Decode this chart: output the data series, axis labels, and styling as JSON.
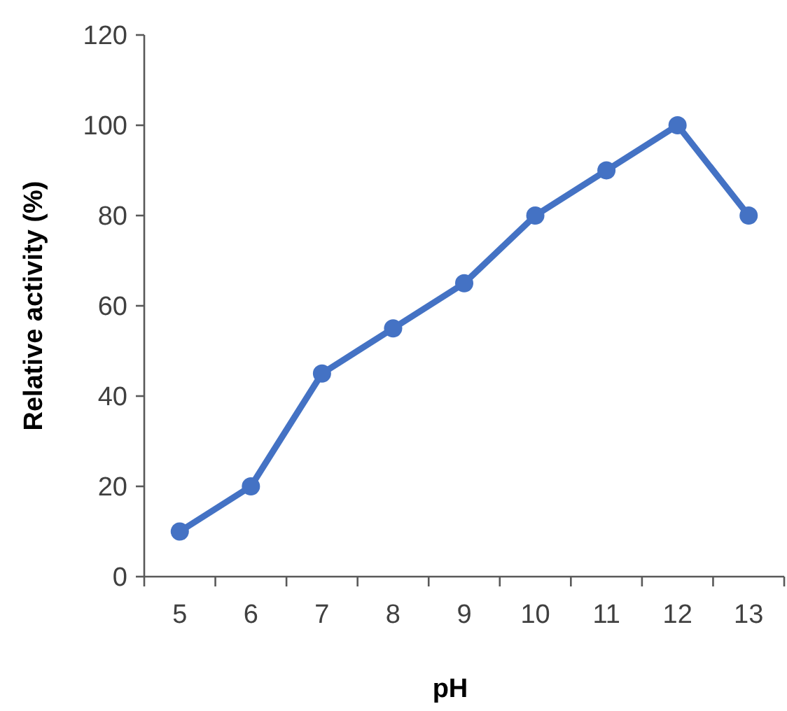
{
  "chart_data": {
    "type": "line",
    "xlabel": "pH",
    "ylabel": "Relative activity (%)",
    "categories": [
      "5",
      "6",
      "7",
      "8",
      "9",
      "10",
      "11",
      "12",
      "13"
    ],
    "series": [
      {
        "color": "#4472c4",
        "values": [
          10,
          20,
          45,
          55,
          65,
          80,
          90,
          100,
          80
        ]
      }
    ],
    "ylim": [
      0,
      120
    ],
    "yticks": [
      0,
      20,
      40,
      60,
      80,
      100,
      120
    ],
    "grid": false,
    "marker": "circle",
    "line_style": "solid"
  }
}
